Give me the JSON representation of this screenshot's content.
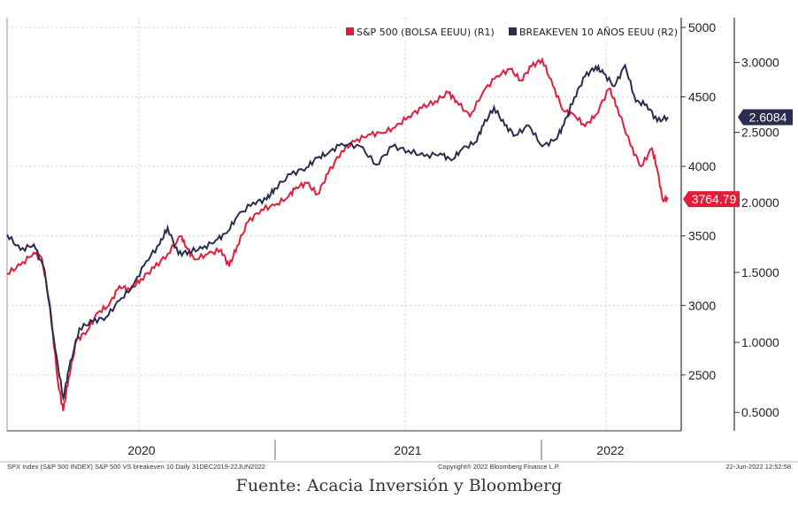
{
  "chart_data": {
    "type": "line",
    "title": "SPX Index (S&P 500 INDEX) S&P 500 VS breakeven 10",
    "legend": [
      "S&P 500 (BOLSA EEUU) (R1)",
      "BREAKEVEN 10 AÑOS EEUU (R2)"
    ],
    "legend_position": "top-right",
    "x_labels": [
      "2020",
      "2021",
      "2022"
    ],
    "x_range": [
      2020.0,
      2022.47
    ],
    "y1": {
      "ticks": [
        "5000",
        "4500",
        "4000",
        "3500",
        "3000",
        "2500"
      ],
      "range": [
        2130,
        5000
      ]
    },
    "y2": {
      "ticks": [
        "3.0000",
        "2.5000",
        "2.0000",
        "1.5000",
        "1.0000",
        "0.5000"
      ],
      "range": [
        0.4,
        3.25
      ]
    },
    "series": [
      {
        "name": "S&P 500 (BOLSA EEUU)",
        "axis": "R1",
        "color": "#e01e3a",
        "last_value": "3764.79",
        "points": [
          [
            2020.0,
            3230
          ],
          [
            2020.05,
            3290
          ],
          [
            2020.1,
            3380
          ],
          [
            2020.13,
            3340
          ],
          [
            2020.16,
            3000
          ],
          [
            2020.19,
            2450
          ],
          [
            2020.21,
            2240
          ],
          [
            2020.23,
            2480
          ],
          [
            2020.26,
            2750
          ],
          [
            2020.3,
            2820
          ],
          [
            2020.34,
            2950
          ],
          [
            2020.38,
            3000
          ],
          [
            2020.42,
            3140
          ],
          [
            2020.46,
            3110
          ],
          [
            2020.5,
            3190
          ],
          [
            2020.55,
            3270
          ],
          [
            2020.6,
            3370
          ],
          [
            2020.65,
            3500
          ],
          [
            2020.67,
            3420
          ],
          [
            2020.7,
            3330
          ],
          [
            2020.75,
            3370
          ],
          [
            2020.8,
            3400
          ],
          [
            2020.83,
            3280
          ],
          [
            2020.86,
            3430
          ],
          [
            2020.9,
            3600
          ],
          [
            2020.95,
            3690
          ],
          [
            2021.0,
            3720
          ],
          [
            2021.05,
            3780
          ],
          [
            2021.08,
            3850
          ],
          [
            2021.12,
            3880
          ],
          [
            2021.16,
            3800
          ],
          [
            2021.2,
            3950
          ],
          [
            2021.25,
            4110
          ],
          [
            2021.3,
            4180
          ],
          [
            2021.35,
            4230
          ],
          [
            2021.4,
            4240
          ],
          [
            2021.45,
            4280
          ],
          [
            2021.5,
            4360
          ],
          [
            2021.55,
            4420
          ],
          [
            2021.6,
            4470
          ],
          [
            2021.65,
            4530
          ],
          [
            2021.68,
            4470
          ],
          [
            2021.73,
            4360
          ],
          [
            2021.78,
            4540
          ],
          [
            2021.83,
            4650
          ],
          [
            2021.88,
            4700
          ],
          [
            2021.92,
            4620
          ],
          [
            2021.96,
            4720
          ],
          [
            2022.0,
            4770
          ],
          [
            2022.04,
            4580
          ],
          [
            2022.08,
            4400
          ],
          [
            2022.12,
            4370
          ],
          [
            2022.16,
            4290
          ],
          [
            2022.2,
            4370
          ],
          [
            2022.25,
            4560
          ],
          [
            2022.28,
            4430
          ],
          [
            2022.33,
            4150
          ],
          [
            2022.37,
            4000
          ],
          [
            2022.41,
            4130
          ],
          [
            2022.43,
            3980
          ],
          [
            2022.45,
            3760
          ],
          [
            2022.47,
            3765
          ]
        ]
      },
      {
        "name": "BREAKEVEN 10 AÑOS EEUU",
        "axis": "R2",
        "color": "#2b2d4f",
        "last_value": "2.6084",
        "points": [
          [
            2020.0,
            1.77
          ],
          [
            2020.05,
            1.66
          ],
          [
            2020.1,
            1.7
          ],
          [
            2020.14,
            1.52
          ],
          [
            2020.18,
            0.95
          ],
          [
            2020.21,
            0.6
          ],
          [
            2020.23,
            0.8
          ],
          [
            2020.27,
            1.1
          ],
          [
            2020.32,
            1.15
          ],
          [
            2020.37,
            1.18
          ],
          [
            2020.42,
            1.3
          ],
          [
            2020.47,
            1.4
          ],
          [
            2020.52,
            1.58
          ],
          [
            2020.57,
            1.7
          ],
          [
            2020.6,
            1.82
          ],
          [
            2020.64,
            1.63
          ],
          [
            2020.68,
            1.65
          ],
          [
            2020.73,
            1.67
          ],
          [
            2020.78,
            1.73
          ],
          [
            2020.82,
            1.78
          ],
          [
            2020.86,
            1.9
          ],
          [
            2020.92,
            2.0
          ],
          [
            2020.97,
            2.02
          ],
          [
            2021.0,
            2.1
          ],
          [
            2021.06,
            2.2
          ],
          [
            2021.12,
            2.25
          ],
          [
            2021.16,
            2.32
          ],
          [
            2021.2,
            2.35
          ],
          [
            2021.25,
            2.42
          ],
          [
            2021.32,
            2.4
          ],
          [
            2021.38,
            2.27
          ],
          [
            2021.44,
            2.4
          ],
          [
            2021.5,
            2.37
          ],
          [
            2021.56,
            2.33
          ],
          [
            2021.62,
            2.35
          ],
          [
            2021.66,
            2.3
          ],
          [
            2021.7,
            2.38
          ],
          [
            2021.75,
            2.43
          ],
          [
            2021.78,
            2.55
          ],
          [
            2021.82,
            2.68
          ],
          [
            2021.86,
            2.55
          ],
          [
            2021.9,
            2.48
          ],
          [
            2021.95,
            2.55
          ],
          [
            2022.0,
            2.4
          ],
          [
            2022.05,
            2.45
          ],
          [
            2022.08,
            2.55
          ],
          [
            2022.12,
            2.75
          ],
          [
            2022.16,
            2.9
          ],
          [
            2022.2,
            2.97
          ],
          [
            2022.23,
            2.92
          ],
          [
            2022.27,
            2.83
          ],
          [
            2022.31,
            2.98
          ],
          [
            2022.35,
            2.72
          ],
          [
            2022.39,
            2.7
          ],
          [
            2022.43,
            2.58
          ],
          [
            2022.47,
            2.61
          ]
        ]
      }
    ]
  },
  "footer": {
    "left": "SPX Index (S&P 500 INDEX) S&P 500 VS breakeven 10  Daily 31DEC2019-22JUN2022",
    "center": "Copyright® 2022 Bloomberg Finance L.P.",
    "right": "22-Jun-2022 12:52:58"
  },
  "caption": "Fuente: Acacia Inversión y Bloomberg"
}
